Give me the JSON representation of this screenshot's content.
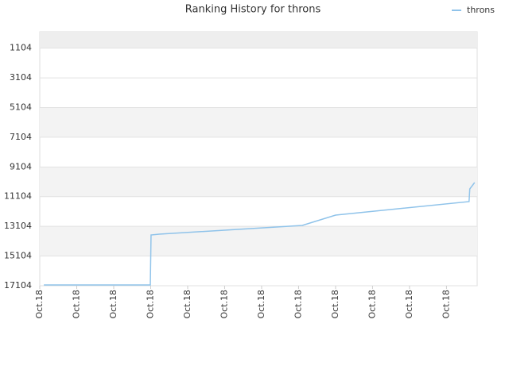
{
  "chart_data": {
    "type": "line",
    "title": "Ranking History for throns",
    "x": [
      0.11,
      2.99,
      3.01,
      3.23,
      7.1,
      8.0,
      11.61,
      11.63,
      11.76
    ],
    "series": [
      {
        "name": "throns",
        "color": "#8fc3ea",
        "values": [
          17050,
          17050,
          13683,
          13630,
          13042,
          12347,
          11438,
          10583,
          10155
        ]
      }
    ],
    "xlim": [
      0,
      11.83
    ],
    "xticks": [
      {
        "value": 0,
        "label": "Oct.18"
      },
      {
        "value": 1,
        "label": "Oct.18"
      },
      {
        "value": 2,
        "label": "Oct.18"
      },
      {
        "value": 3,
        "label": "Oct.18"
      },
      {
        "value": 4,
        "label": "Oct.18"
      },
      {
        "value": 5,
        "label": "Oct.18"
      },
      {
        "value": 6,
        "label": "Oct.18"
      },
      {
        "value": 7,
        "label": "Oct.18"
      },
      {
        "value": 8,
        "label": "Oct.18"
      },
      {
        "value": 9,
        "label": "Oct.18"
      },
      {
        "value": 10,
        "label": "Oct.18"
      },
      {
        "value": 11,
        "label": "Oct.18"
      }
    ],
    "ylim": [
      17104,
      0
    ],
    "yticks": [
      1104,
      3104,
      5104,
      7104,
      9104,
      11104,
      13104,
      15104,
      17104
    ],
    "grid": true,
    "legend": "top-right"
  }
}
